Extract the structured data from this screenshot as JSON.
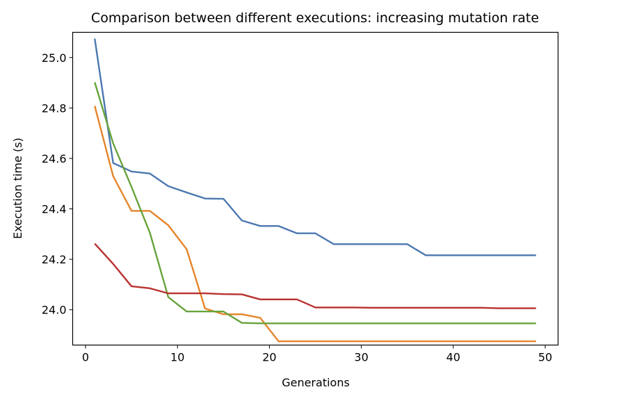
{
  "chart_data": {
    "type": "line",
    "title": "Comparison between different executions: increasing mutation rate",
    "xlabel": "Generations",
    "ylabel": "Execution time (s)",
    "xlim": [
      -1.4,
      51.4
    ],
    "ylim": [
      23.86,
      25.1
    ],
    "xticks": [
      0,
      10,
      20,
      30,
      40,
      50
    ],
    "yticks": [
      24.0,
      24.2,
      24.4,
      24.6,
      24.8,
      25.0
    ],
    "ytick_labels": [
      "24.0",
      "24.2",
      "24.4",
      "24.6",
      "24.8",
      "25.0"
    ],
    "grid": false,
    "legend": false,
    "series": [
      {
        "color": "#4c78b0",
        "x": [
          1,
          3,
          5,
          7,
          9,
          11,
          13,
          15,
          17,
          19,
          21,
          23,
          25,
          27,
          29,
          31,
          33,
          35,
          37,
          39,
          41,
          43,
          45,
          47,
          49
        ],
        "y": [
          25.075,
          24.582,
          24.548,
          24.54,
          24.49,
          24.465,
          24.441,
          24.44,
          24.354,
          24.332,
          24.332,
          24.303,
          24.303,
          24.26,
          24.26,
          24.26,
          24.26,
          24.26,
          24.216,
          24.216,
          24.216,
          24.216,
          24.216,
          24.216,
          24.216
        ]
      },
      {
        "color": "#e6842a",
        "x": [
          1,
          3,
          5,
          7,
          9,
          11,
          13,
          15,
          17,
          19,
          21,
          23,
          25,
          27,
          29,
          31,
          33,
          35,
          37,
          39,
          41,
          43,
          45,
          47,
          49
        ],
        "y": [
          24.808,
          24.53,
          24.392,
          24.392,
          24.335,
          24.24,
          24.005,
          23.982,
          23.982,
          23.968,
          23.875,
          23.875,
          23.875,
          23.875,
          23.875,
          23.875,
          23.875,
          23.875,
          23.875,
          23.875,
          23.875,
          23.875,
          23.875,
          23.875,
          23.875
        ]
      },
      {
        "color": "#67a33c",
        "x": [
          1,
          3,
          5,
          7,
          9,
          11,
          13,
          15,
          17,
          19,
          21,
          23,
          25,
          27,
          29,
          31,
          33,
          35,
          37,
          39,
          41,
          43,
          45,
          47,
          49
        ],
        "y": [
          24.902,
          24.66,
          24.487,
          24.305,
          24.05,
          23.993,
          23.993,
          23.993,
          23.948,
          23.946,
          23.946,
          23.946,
          23.946,
          23.946,
          23.946,
          23.946,
          23.946,
          23.946,
          23.946,
          23.946,
          23.946,
          23.946,
          23.946,
          23.946,
          23.946
        ]
      },
      {
        "color": "#b8312f",
        "x": [
          1,
          3,
          5,
          7,
          9,
          11,
          13,
          15,
          17,
          19,
          21,
          23,
          25,
          27,
          29,
          31,
          33,
          35,
          37,
          39,
          41,
          43,
          45,
          47,
          49
        ],
        "y": [
          24.262,
          24.182,
          24.093,
          24.085,
          24.065,
          24.065,
          24.065,
          24.062,
          24.061,
          24.041,
          24.041,
          24.041,
          24.009,
          24.009,
          24.009,
          24.008,
          24.008,
          24.008,
          24.008,
          24.008,
          24.008,
          24.008,
          24.006,
          24.006,
          24.006
        ]
      }
    ]
  }
}
